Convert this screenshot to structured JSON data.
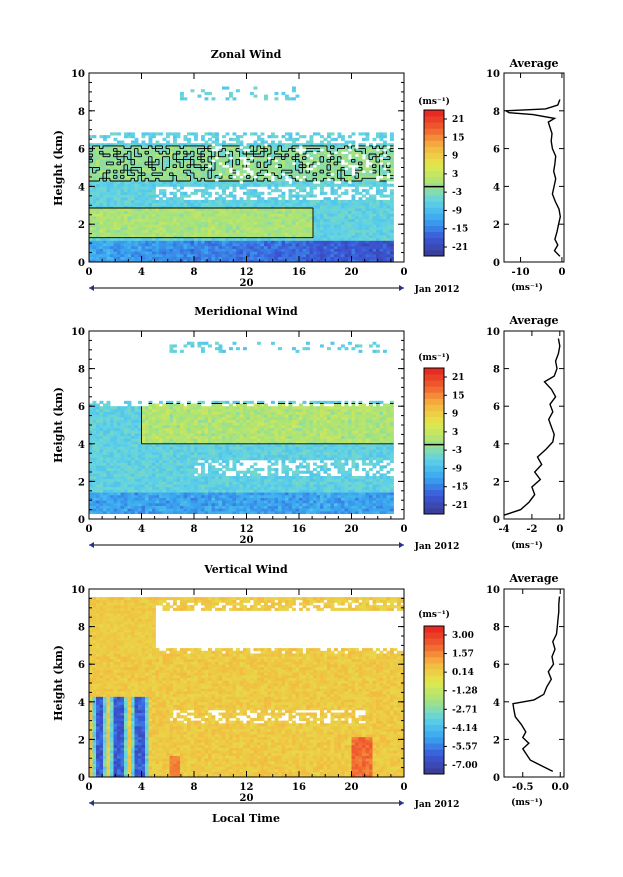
{
  "x_axis": {
    "ticks": [
      "0",
      "4",
      "8",
      "12",
      "16",
      "20",
      "0"
    ],
    "day_label": "20",
    "date_label": "Jan 2012",
    "xlabel": "Local Time",
    "xlim": [
      0,
      24
    ]
  },
  "y_axis": {
    "ticks": [
      "0",
      "2",
      "4",
      "6",
      "8",
      "10"
    ],
    "ylabel": "Height (km)",
    "ylim": [
      0,
      10
    ]
  },
  "chart_data": [
    {
      "type": "heatmap",
      "title": "Zonal Wind",
      "colorbar": {
        "unit": "(ms⁻¹)",
        "ticks": [
          "21",
          "15",
          "9",
          "3",
          "-3",
          "-9",
          "-15",
          "-21"
        ],
        "range": [
          -24,
          24
        ],
        "contour_level": 0
      },
      "color_stops": [
        "#3a3a8f",
        "#3a57d8",
        "#39a6f0",
        "#5fd2e8",
        "#a7e37a",
        "#e2e84c",
        "#f5b640",
        "#f06030",
        "#e52020"
      ],
      "average": {
        "title": "Average",
        "xlabel": "(ms⁻¹)",
        "xticks": [
          "-10",
          "0"
        ],
        "xlim": [
          -14,
          0.5
        ],
        "y": [
          0.3,
          0.6,
          0.9,
          1.2,
          1.6,
          2.0,
          2.4,
          2.8,
          3.2,
          3.6,
          4.0,
          4.4,
          4.8,
          5.2,
          5.6,
          6.0,
          6.4,
          6.8,
          7.2,
          7.4,
          7.6,
          7.8,
          7.9,
          8.0,
          8.1,
          8.3,
          8.6
        ],
        "x": [
          -0.5,
          -1.8,
          -1.0,
          -1.7,
          -1.2,
          -0.8,
          -0.4,
          -0.7,
          -1.6,
          -2.3,
          -1.9,
          -1.5,
          -2.0,
          -1.7,
          -1.5,
          -2.3,
          -2.6,
          -2.4,
          -3.0,
          -3.3,
          -1.8,
          -7.0,
          -12.8,
          -13.5,
          -4.0,
          -1.0,
          -0.5
        ]
      }
    },
    {
      "type": "heatmap",
      "title": "Meridional Wind",
      "colorbar": {
        "unit": "(ms⁻¹)",
        "ticks": [
          "21",
          "15",
          "9",
          "3",
          "-3",
          "-9",
          "-15",
          "-21"
        ],
        "range": [
          -24,
          24
        ],
        "contour_level": 0
      },
      "color_stops": [
        "#3a3a8f",
        "#3a57d8",
        "#39a6f0",
        "#5fd2e8",
        "#a7e37a",
        "#e2e84c",
        "#f5b640",
        "#f06030",
        "#e52020"
      ],
      "average": {
        "title": "Average",
        "xlabel": "(ms⁻¹)",
        "xticks": [
          "-4",
          "-2",
          "0"
        ],
        "xlim": [
          -4,
          0.3
        ],
        "y": [
          0.2,
          0.5,
          0.9,
          1.3,
          1.7,
          2.1,
          2.5,
          2.9,
          3.3,
          3.7,
          4.1,
          4.5,
          4.9,
          5.3,
          5.7,
          6.1,
          6.5,
          6.9,
          7.3,
          7.6,
          8.0,
          8.4,
          8.8,
          9.2,
          9.6
        ],
        "x": [
          -4.0,
          -2.8,
          -2.2,
          -1.8,
          -2.0,
          -1.4,
          -1.8,
          -1.3,
          -1.6,
          -1.0,
          -0.5,
          -0.4,
          -0.6,
          -0.8,
          -0.5,
          -0.7,
          -0.3,
          -0.6,
          -1.1,
          -0.4,
          -0.2,
          -0.3,
          -0.1,
          0.0,
          -0.1
        ]
      }
    },
    {
      "type": "heatmap",
      "title": "Vertical Wind",
      "colorbar": {
        "unit": "(ms⁻¹)",
        "ticks": [
          "3.00",
          "1.57",
          "0.14",
          "-1.28",
          "-2.71",
          "-4.14",
          "-5.57",
          "-7.00"
        ],
        "range": [
          -7.7,
          3.7
        ]
      },
      "color_stops": [
        "#3a3a8f",
        "#3a57d8",
        "#39a6f0",
        "#5fd2e8",
        "#a7e37a",
        "#e2e84c",
        "#f5b640",
        "#f06030",
        "#e52020"
      ],
      "average": {
        "title": "Average",
        "xlabel": "(ms⁻¹)",
        "xticks": [
          "-0.5",
          "0.0"
        ],
        "xlim": [
          -0.75,
          0.05
        ],
        "y": [
          0.3,
          0.6,
          0.9,
          1.2,
          1.5,
          1.8,
          2.1,
          2.4,
          2.8,
          3.2,
          3.6,
          3.9,
          4.1,
          4.4,
          4.8,
          5.2,
          5.6,
          6.0,
          6.4,
          6.8,
          7.2,
          7.6,
          8.0,
          8.4,
          8.8,
          9.2,
          9.6
        ],
        "x": [
          -0.1,
          -0.25,
          -0.4,
          -0.45,
          -0.5,
          -0.42,
          -0.5,
          -0.46,
          -0.52,
          -0.6,
          -0.62,
          -0.63,
          -0.35,
          -0.22,
          -0.18,
          -0.12,
          -0.16,
          -0.09,
          -0.11,
          -0.07,
          -0.1,
          -0.05,
          -0.04,
          -0.03,
          -0.02,
          -0.02,
          -0.01
        ]
      }
    }
  ]
}
